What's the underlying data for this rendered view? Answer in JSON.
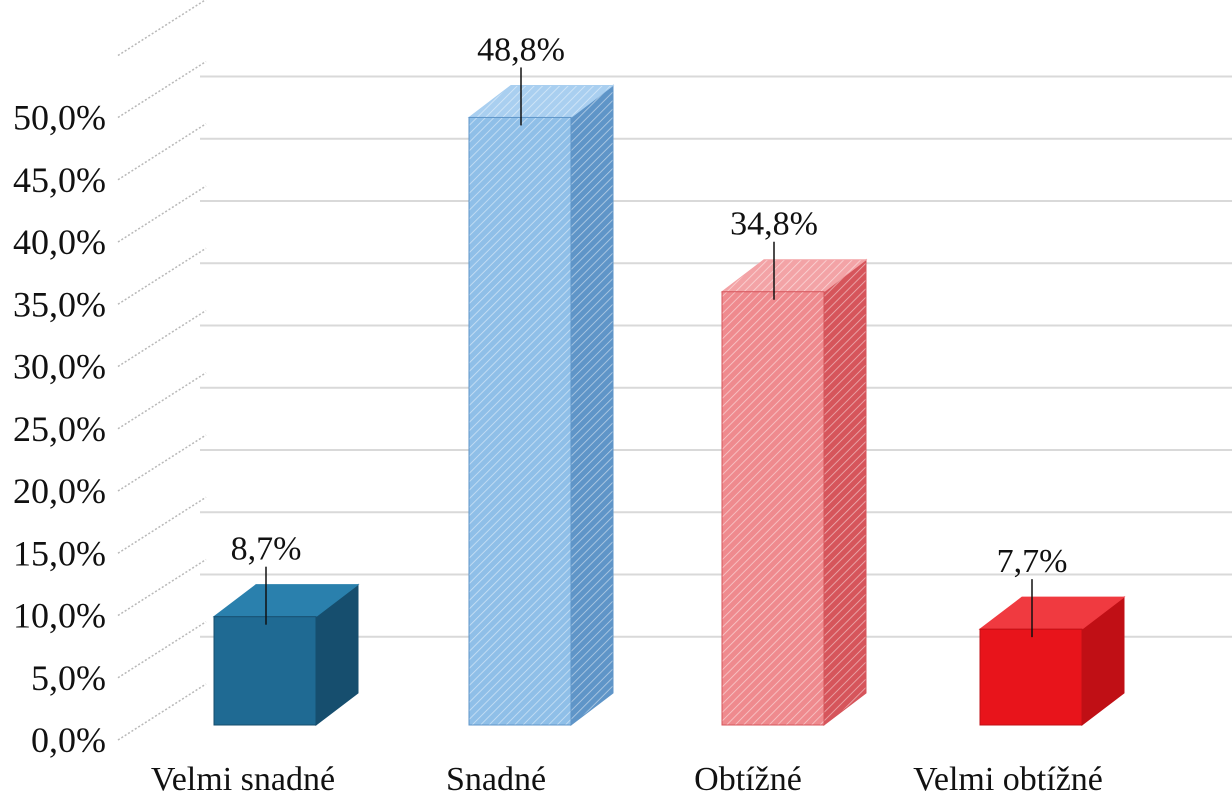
{
  "chart_data": {
    "type": "bar",
    "style": "3d-column",
    "categories": [
      "Velmi snadné",
      "Snadné",
      "Obtížné",
      "Velmi obtížné"
    ],
    "values": [
      8.7,
      48.8,
      34.8,
      7.7
    ],
    "data_labels": [
      "8,7%",
      "48,8%",
      "34,8%",
      "7,7%"
    ],
    "y_ticks": [
      {
        "value": 0,
        "label": "0,0%"
      },
      {
        "value": 5,
        "label": "5,0%"
      },
      {
        "value": 10,
        "label": "10,0%"
      },
      {
        "value": 15,
        "label": "15,0%"
      },
      {
        "value": 20,
        "label": "20,0%"
      },
      {
        "value": 25,
        "label": "25,0%"
      },
      {
        "value": 30,
        "label": "30,0%"
      },
      {
        "value": 35,
        "label": "35,0%"
      },
      {
        "value": 40,
        "label": "40,0%"
      },
      {
        "value": 45,
        "label": "45,0%"
      },
      {
        "value": 50,
        "label": "50,0%"
      }
    ],
    "ylim": [
      0,
      50
    ],
    "grid": true,
    "legend": "none",
    "title": "",
    "xlabel": "",
    "ylabel": "",
    "bar_colors": [
      {
        "front": "#1f6a93",
        "side": "#164e6e",
        "top": "#2a80ad",
        "pattern": "solid"
      },
      {
        "front": "#8fbfe8",
        "side": "#5f95c8",
        "top": "#a9cff0",
        "pattern": "hatched"
      },
      {
        "front": "#ef8a8e",
        "side": "#d6555b",
        "top": "#f3a3a6",
        "pattern": "hatched"
      },
      {
        "front": "#e8141b",
        "side": "#c00f15",
        "top": "#f03a40",
        "pattern": "solid"
      }
    ]
  }
}
